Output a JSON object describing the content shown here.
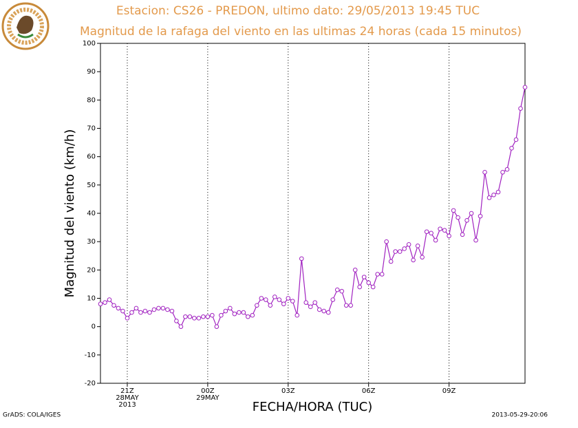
{
  "chart_data": {
    "type": "line",
    "title": "Estacion: CS26 - PREDON, ultimo dato: 29/05/2013 19:45 TUC",
    "subtitle": "Magnitud de la rafaga del viento en las ultimas 24 horas (cada 15 minutos)",
    "y_label": "Magnitud del viento (km/h)",
    "x_label": "FECHA/HORA (TUC)",
    "footer_left": "GrADS: COLA/IGES",
    "footer_right": "2013-05-29-20:06",
    "xlim": [
      0,
      950
    ],
    "ylim": [
      -20,
      100
    ],
    "xticks": [
      {
        "value": 60,
        "label": "21Z"
      },
      {
        "value": 240,
        "label": "00Z"
      },
      {
        "value": 420,
        "label": "03Z"
      },
      {
        "value": 600,
        "label": "06Z"
      },
      {
        "value": 780,
        "label": "09Z"
      }
    ],
    "xtick_sublabels": [
      {
        "value": 60,
        "lines": [
          "28MAY",
          "2013"
        ]
      },
      {
        "value": 240,
        "lines": [
          "29MAY"
        ]
      }
    ],
    "yticks": [
      -20,
      -10,
      0,
      10,
      20,
      30,
      40,
      50,
      60,
      70,
      80,
      90,
      100
    ],
    "grid": "x",
    "series": [
      {
        "name": "rafaga",
        "color": "#a020c0",
        "x": [
          0,
          10,
          20,
          30,
          40,
          50,
          60,
          70,
          80,
          90,
          100,
          110,
          120,
          130,
          140,
          150,
          160,
          170,
          180,
          190,
          200,
          210,
          220,
          230,
          240,
          250,
          260,
          270,
          280,
          290,
          300,
          310,
          320,
          330,
          340,
          350,
          360,
          370,
          380,
          390,
          400,
          410,
          420,
          430,
          440,
          450,
          460,
          470,
          480,
          490,
          500,
          510,
          520,
          530,
          540,
          550,
          560,
          570,
          580,
          590,
          600,
          610,
          620,
          630,
          640,
          650,
          660,
          670,
          680,
          690,
          700,
          710,
          720,
          730,
          740,
          750,
          760,
          770,
          780,
          790,
          800,
          810,
          820,
          830,
          840,
          850,
          860,
          870,
          880,
          890,
          900,
          910,
          920,
          930,
          940,
          950
        ],
        "values": [
          8,
          8.5,
          9.5,
          7.5,
          6.5,
          5.5,
          3,
          5,
          6.5,
          5,
          5.5,
          5,
          6,
          6.5,
          6.5,
          6,
          5.5,
          2,
          0,
          3.5,
          3.5,
          3,
          3,
          3.5,
          3.5,
          4,
          0,
          4,
          5.5,
          6.5,
          4.5,
          5,
          5,
          3.5,
          4,
          7.5,
          10,
          9.5,
          7.5,
          10.5,
          9.5,
          8,
          10,
          9,
          4,
          24,
          8.5,
          7,
          8.5,
          6,
          5.5,
          5,
          9.5,
          13,
          12.5,
          7.5,
          7.5,
          20,
          14,
          17.5,
          15.5,
          14,
          18.5,
          18.5,
          30,
          23,
          26.5,
          26.5,
          27.5,
          29,
          23.5,
          28.5,
          24.5,
          33.5,
          33,
          30.5,
          34.5,
          34,
          32,
          41,
          38.5,
          32.5,
          37.5,
          40,
          30.5,
          39,
          54.5,
          45.5,
          46.5,
          47.5,
          54.5,
          55.5,
          63,
          66,
          77,
          84.5
        ]
      }
    ]
  }
}
